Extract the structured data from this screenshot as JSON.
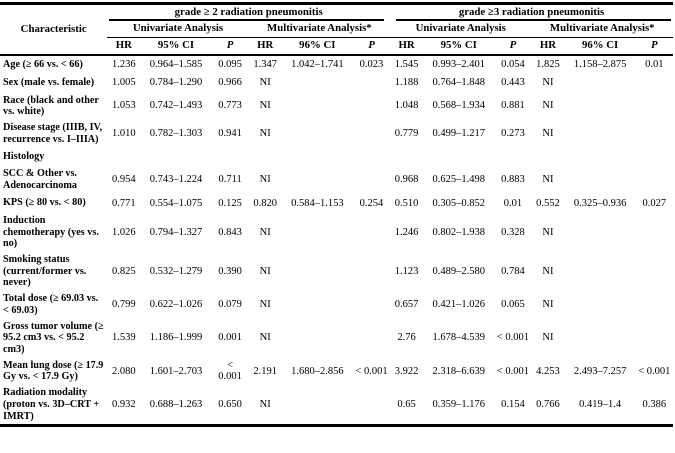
{
  "table": {
    "characteristic_header": "Characteristic",
    "groups": [
      {
        "label": "grade ≥ 2 radiation pneumonitis"
      },
      {
        "label": "grade ≥3 radiation pneumonitis"
      }
    ],
    "analysis_headers": {
      "univariate": "Univariate Analysis",
      "multivariate": "Multivariate Analysis*"
    },
    "sub_headers": {
      "hr": "HR",
      "ci95": "95% CI",
      "ci96": "96% CI",
      "p": "P"
    },
    "rows": [
      {
        "characteristic": "Age (≥ 66 vs. < 66)",
        "values": [
          "1.236",
          "0.964–1.585",
          "0.095",
          "1.347",
          "1.042–1.741",
          "0.023",
          "1.545",
          "0.993–2.401",
          "0.054",
          "1.825",
          "1.158–2.875",
          "0.01"
        ]
      },
      {
        "characteristic": "Sex (male vs. female)",
        "values": [
          "1.005",
          "0.784–1.290",
          "0.966",
          "NI",
          "",
          "",
          "1.188",
          "0.764–1.848",
          "0.443",
          "NI",
          "",
          ""
        ]
      },
      {
        "characteristic": "Race (black and other vs. white)",
        "values": [
          "1.053",
          "0.742–1.493",
          "0.773",
          "NI",
          "",
          "",
          "1.048",
          "0.568–1.934",
          "0.881",
          "NI",
          "",
          ""
        ]
      },
      {
        "characteristic": "Disease stage (IIIB, IV, recurrence vs.  I–IIIA)",
        "values": [
          "1.010",
          "0.782–1.303",
          "0.941",
          "NI",
          "",
          "",
          "0.779",
          "0.499–1.217",
          "0.273",
          "NI",
          "",
          ""
        ]
      },
      {
        "characteristic": "Histology",
        "values": [
          "",
          "",
          "",
          "",
          "",
          "",
          "",
          "",
          "",
          "",
          "",
          ""
        ]
      },
      {
        "characteristic": "SCC & Other vs. Adenocarcinoma",
        "values": [
          "0.954",
          "0.743–1.224",
          "0.711",
          "NI",
          "",
          "",
          "0.968",
          "0.625–1.498",
          "0.883",
          "NI",
          "",
          ""
        ]
      },
      {
        "characteristic": "KPS (≥ 80 vs. < 80)",
        "values": [
          "0.771",
          "0.554–1.075",
          "0.125",
          "0.820",
          "0.584–1.153",
          "0.254",
          "0.510",
          "0.305–0.852",
          "0.01",
          "0.552",
          "0.325–0.936",
          "0.027"
        ]
      },
      {
        "characteristic": "Induction chemotherapy (yes vs. no)",
        "values": [
          "1.026",
          "0.794–1.327",
          "0.843",
          "NI",
          "",
          "",
          "1.246",
          "0.802–1.938",
          "0.328",
          "NI",
          "",
          ""
        ]
      },
      {
        "characteristic": "Smoking status (current/former vs. never)",
        "values": [
          "0.825",
          "0.532–1.279",
          "0.390",
          "NI",
          "",
          "",
          "1.123",
          "0.489–2.580",
          "0.784",
          "NI",
          "",
          ""
        ]
      },
      {
        "characteristic": "Total dose (≥ 69.03 vs. < 69.03)",
        "values": [
          "0.799",
          "0.622–1.026",
          "0.079",
          "NI",
          "",
          "",
          "0.657",
          "0.421–1.026",
          "0.065",
          "NI",
          "",
          ""
        ]
      },
      {
        "characteristic": "Gross tumor volume (≥ 95.2 cm3 vs. < 95.2 cm3)",
        "values": [
          "1.539",
          "1.186–1.999",
          "0.001",
          "NI",
          "",
          "",
          "2.76",
          "1.678–4.539",
          "< 0.001",
          "NI",
          "",
          ""
        ]
      },
      {
        "characteristic": "Mean lung dose (≥ 17.9 Gy vs. < 17.9 Gy)",
        "values": [
          "2.080",
          "1.601–2.703",
          "<\n0.001",
          "2.191",
          "1.680–2.856",
          "< 0.001",
          "3.922",
          "2.318–6.639",
          "< 0.001",
          "4.253",
          "2.493–7.257",
          "< 0.001"
        ]
      },
      {
        "characteristic": "Radiation modality (proton vs. 3D–CRT + IMRT)",
        "values": [
          "0.932",
          "0.688–1.263",
          "0.650",
          "NI",
          "",
          "",
          "0.65",
          "0.359–1.176",
          "0.154",
          "0.766",
          "0.419–1.4",
          "0.386"
        ]
      }
    ]
  }
}
